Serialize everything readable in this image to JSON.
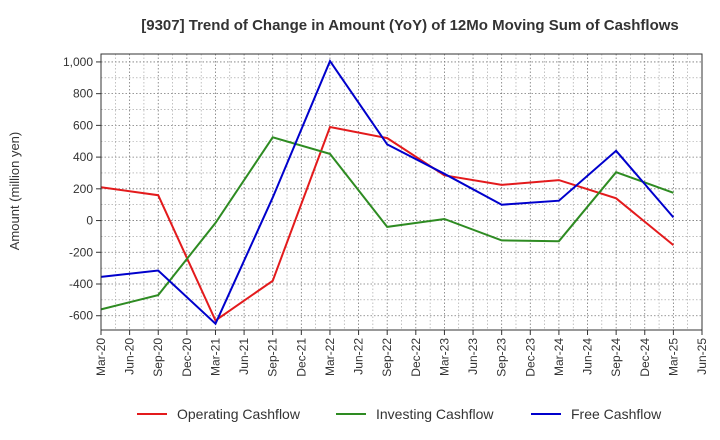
{
  "chart_data": {
    "type": "line",
    "title": "[9307]  Trend of Change in Amount (YoY) of 12Mo Moving Sum of Cashflows",
    "ylabel": "Amount (million yen)",
    "xlabel": "",
    "ylim": [
      -690,
      1050
    ],
    "yticks": [
      -600,
      -400,
      -200,
      0,
      200,
      400,
      600,
      800,
      1000
    ],
    "ytick_labels": [
      "-600",
      "-400",
      "-200",
      "0",
      "200",
      "400",
      "600",
      "800",
      "1,000"
    ],
    "categories": [
      "Mar-20",
      "Jun-20",
      "Sep-20",
      "Dec-20",
      "Mar-21",
      "Jun-21",
      "Sep-21",
      "Dec-21",
      "Mar-22",
      "Jun-22",
      "Sep-22",
      "Dec-22",
      "Mar-23",
      "Jun-23",
      "Sep-23",
      "Dec-23",
      "Mar-24",
      "Jun-24",
      "Sep-24",
      "Dec-24",
      "Mar-25",
      "Jun-25"
    ],
    "series": [
      {
        "name": "Operating Cashflow",
        "color": "#e31a1c",
        "values": [
          210,
          null,
          160,
          null,
          -630,
          null,
          -380,
          null,
          590,
          null,
          520,
          null,
          285,
          null,
          225,
          null,
          255,
          null,
          140,
          null,
          -155,
          null
        ]
      },
      {
        "name": "Investing Cashflow",
        "color": "#2e8b22",
        "values": [
          -560,
          null,
          -470,
          null,
          -15,
          null,
          525,
          null,
          420,
          null,
          -40,
          null,
          10,
          null,
          -125,
          null,
          -130,
          null,
          305,
          null,
          175,
          null
        ]
      },
      {
        "name": "Free Cashflow",
        "color": "#0000cc",
        "values": [
          -355,
          null,
          -315,
          null,
          -650,
          null,
          145,
          null,
          1005,
          null,
          480,
          null,
          295,
          null,
          100,
          null,
          125,
          null,
          440,
          null,
          20,
          null
        ]
      }
    ],
    "legend_position": "bottom",
    "grid": true
  }
}
